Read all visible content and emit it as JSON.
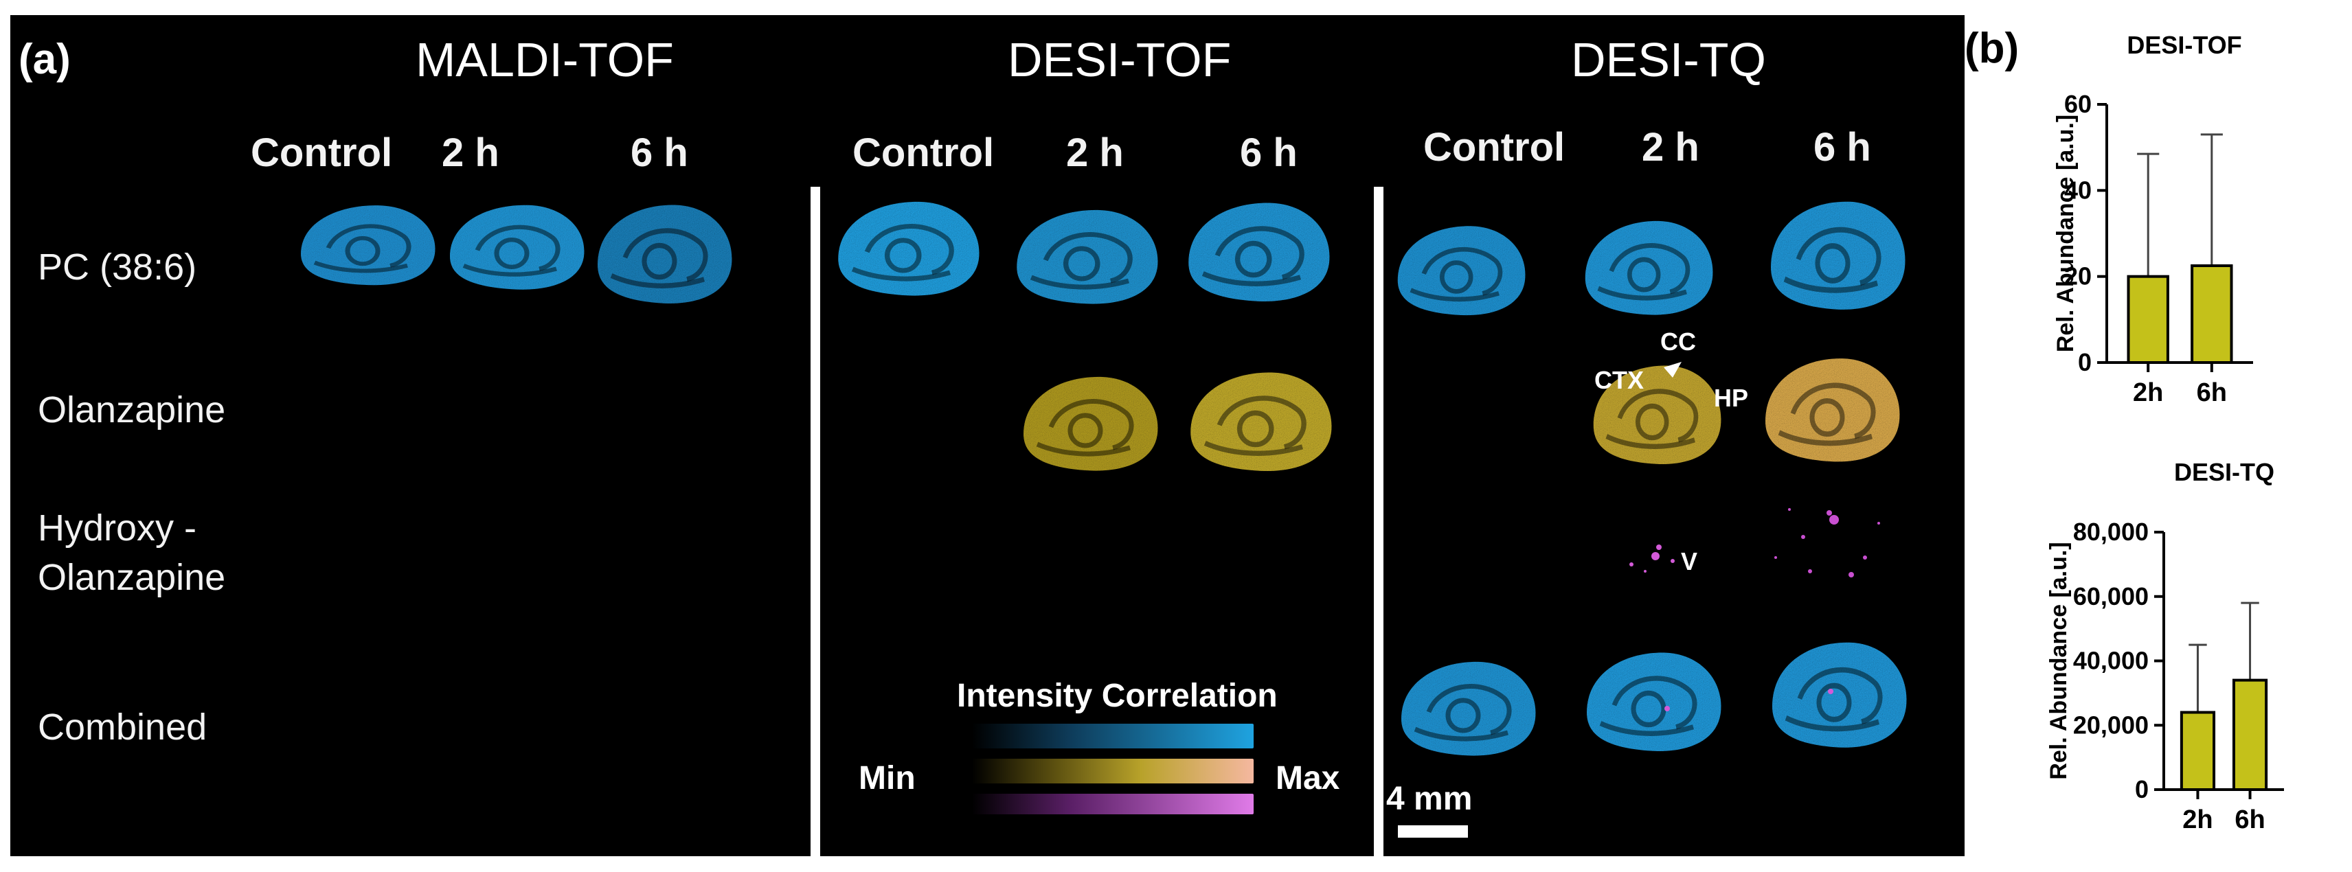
{
  "panel_a": {
    "label": "(a)",
    "sections": [
      {
        "title": "MALDI-TOF",
        "columns": [
          "Control",
          "2 h",
          "6 h"
        ]
      },
      {
        "title": "DESI-TOF",
        "columns": [
          "Control",
          "2 h",
          "6 h"
        ]
      },
      {
        "title": "DESI-TQ",
        "columns": [
          "Control",
          "2 h",
          "6 h"
        ]
      }
    ],
    "rows": [
      "PC (38:6)",
      "Olanzapine",
      "Hydroxy -",
      "Olanzapine",
      "Combined"
    ],
    "annotations": [
      "CC",
      "CTX",
      "HP",
      "V"
    ],
    "legend": {
      "title": "Intensity Correlation",
      "min": "Min",
      "max": "Max",
      "colors": {
        "pc": "#1fa3e0",
        "olanzapine": "#c9b431",
        "hydroxy": "#e07be8"
      }
    },
    "scale_bar": "4 mm"
  },
  "panel_b": {
    "label": "(b)",
    "bar_color": "#c4c11a",
    "charts": [
      {
        "title": "DESI-TOF",
        "ylabel": "Rel. Abundance [a.u.]",
        "ticks": [
          "0",
          "20",
          "40",
          "60"
        ],
        "categories": [
          "2h",
          "6h"
        ]
      },
      {
        "title": "DESI-TQ",
        "ylabel": "Rel. Abundance [a.u.]",
        "ticks": [
          "0",
          "20,000",
          "40,000",
          "60,000",
          "80,000"
        ],
        "categories": [
          "2h",
          "6h"
        ]
      }
    ]
  },
  "chart_data": [
    {
      "type": "bar",
      "title": "DESI-TOF",
      "ylabel": "Rel. Abundance [a.u.]",
      "categories": [
        "2h",
        "6h"
      ],
      "values": [
        20,
        22.5
      ],
      "error_upper": [
        48.5,
        53
      ],
      "ylim": [
        0,
        60
      ]
    },
    {
      "type": "bar",
      "title": "DESI-TQ",
      "ylabel": "Rel. Abundance [a.u.]",
      "categories": [
        "2h",
        "6h"
      ],
      "values": [
        24000,
        34000
      ],
      "error_upper": [
        45000,
        58000
      ],
      "ylim": [
        0,
        80000
      ]
    }
  ]
}
